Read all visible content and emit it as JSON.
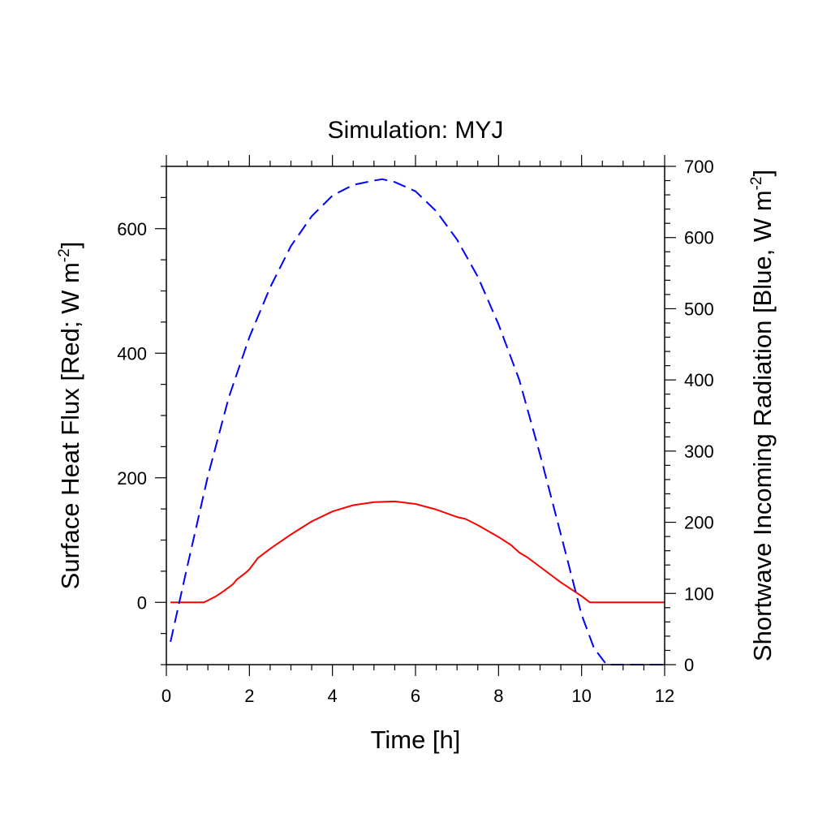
{
  "chart_data": {
    "type": "line",
    "title": "Simulation: MYJ",
    "xlabel": "Time [h]",
    "ylabel_left": {
      "text": "Surface Heat Flux [Red; W m",
      "superscript": "-2",
      "suffix": "]"
    },
    "ylabel_right": {
      "text": "Shortwave Incoming Radiation [Blue, W m",
      "superscript": "-2",
      "suffix": "]"
    },
    "xlim": [
      0,
      12
    ],
    "ylim_left": [
      -100,
      700
    ],
    "ylim_right": [
      0,
      700
    ],
    "x_ticks": [
      "0",
      "2",
      "4",
      "6",
      "8",
      "10",
      "12"
    ],
    "y_left_ticks": [
      "0",
      "200",
      "400",
      "600"
    ],
    "y_right_ticks": [
      "0",
      "100",
      "200",
      "300",
      "400",
      "500",
      "600",
      "700"
    ],
    "grid": false,
    "legend": "none",
    "series": [
      {
        "axis": "left",
        "color": "#ff0000",
        "style": "solid",
        "points": [
          [
            0.1,
            0
          ],
          [
            0.9,
            0
          ],
          [
            1.0,
            3
          ],
          [
            1.2,
            10
          ],
          [
            1.4,
            19
          ],
          [
            1.6,
            29
          ],
          [
            1.7,
            37
          ],
          [
            1.9,
            47
          ],
          [
            2.0,
            53
          ],
          [
            2.1,
            62
          ],
          [
            2.2,
            71
          ],
          [
            2.5,
            86
          ],
          [
            3.0,
            109
          ],
          [
            3.5,
            130
          ],
          [
            4.0,
            146
          ],
          [
            4.5,
            156
          ],
          [
            5.0,
            161
          ],
          [
            5.5,
            162
          ],
          [
            6.0,
            158
          ],
          [
            6.5,
            149
          ],
          [
            7.0,
            137
          ],
          [
            7.2,
            134
          ],
          [
            7.5,
            124
          ],
          [
            8.0,
            105
          ],
          [
            8.3,
            92
          ],
          [
            8.5,
            80
          ],
          [
            8.7,
            72
          ],
          [
            9.0,
            57
          ],
          [
            9.5,
            32
          ],
          [
            10.0,
            10
          ],
          [
            10.2,
            0
          ],
          [
            12.0,
            0
          ]
        ]
      },
      {
        "axis": "right",
        "color": "#0000ff",
        "style": "dashed",
        "points": [
          [
            0.1,
            32
          ],
          [
            0.5,
            137
          ],
          [
            1.0,
            265
          ],
          [
            1.5,
            375
          ],
          [
            2.0,
            460
          ],
          [
            2.5,
            530
          ],
          [
            3.0,
            588
          ],
          [
            3.5,
            630
          ],
          [
            4.0,
            659
          ],
          [
            4.5,
            674
          ],
          [
            5.0,
            680
          ],
          [
            5.2,
            682
          ],
          [
            5.5,
            678
          ],
          [
            6.0,
            665
          ],
          [
            6.5,
            637
          ],
          [
            7.0,
            597
          ],
          [
            7.5,
            545
          ],
          [
            8.0,
            478
          ],
          [
            8.5,
            400
          ],
          [
            9.0,
            295
          ],
          [
            9.5,
            183
          ],
          [
            10.0,
            70
          ],
          [
            10.3,
            23
          ],
          [
            10.6,
            0
          ],
          [
            12.0,
            0
          ]
        ]
      }
    ]
  }
}
